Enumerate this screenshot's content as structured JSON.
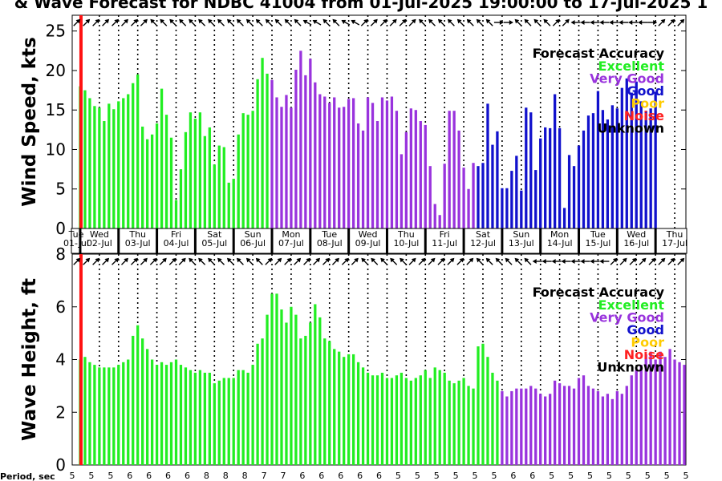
{
  "title": "& Wave Forecast for NDBC 41004 from 01-Jul-2025 19:00:00 to 17-Jul-2025 1",
  "accuracy_legend": {
    "title": "Forecast Accuracy",
    "entries": [
      {
        "label": "Excellent",
        "color": "#22ee22"
      },
      {
        "label": "Very Good",
        "color": "#9933dd"
      },
      {
        "label": "Good",
        "color": "#1111cc"
      },
      {
        "label": "Poor",
        "color": "#ffcc00"
      },
      {
        "label": "Noise",
        "color": "#ff2222"
      },
      {
        "label": "Unknown",
        "color": "#000000"
      }
    ]
  },
  "day_labels": [
    {
      "dow": "Tue",
      "date": "01-Jul"
    },
    {
      "dow": "Wed",
      "date": "02-Jul"
    },
    {
      "dow": "Thu",
      "date": "03-Jul"
    },
    {
      "dow": "Fri",
      "date": "04-Jul"
    },
    {
      "dow": "Sat",
      "date": "05-Jul"
    },
    {
      "dow": "Sun",
      "date": "06-Jul"
    },
    {
      "dow": "Mon",
      "date": "07-Jul"
    },
    {
      "dow": "Tue",
      "date": "08-Jul"
    },
    {
      "dow": "Wed",
      "date": "09-Jul"
    },
    {
      "dow": "Thu",
      "date": "10-Jul"
    },
    {
      "dow": "Fri",
      "date": "11-Jul"
    },
    {
      "dow": "Sat",
      "date": "12-Jul"
    },
    {
      "dow": "Sun",
      "date": "13-Jul"
    },
    {
      "dow": "Mon",
      "date": "14-Jul"
    },
    {
      "dow": "Tue",
      "date": "15-Jul"
    },
    {
      "dow": "Wed",
      "date": "16-Jul"
    },
    {
      "dow": "Thu",
      "date": "17-Jul"
    }
  ],
  "period_label": "Period, sec",
  "periods": [
    "5",
    "5",
    "5",
    "6",
    "6",
    "6",
    "6",
    "8",
    "8",
    "8",
    "7",
    "7",
    "6",
    "6",
    "6",
    "6",
    "6",
    "5",
    "5",
    "5",
    "5",
    "5",
    "5",
    "6",
    "6",
    "5",
    "5",
    "5",
    "5",
    "5",
    "5",
    "5",
    "5"
  ],
  "chart_data": [
    {
      "type": "bar",
      "ylabel": "Wind Speed, kts",
      "ylim": [
        0,
        27
      ],
      "yticks": [
        0,
        5,
        10,
        15,
        20,
        25
      ],
      "grid": "dotted vertical lines at 00:00 and 12:00",
      "noise_marker_hour": 5.5,
      "bars_start_hour": 5,
      "bar_step_hours": 3,
      "values": [
        18,
        17.5,
        16.5,
        15.5,
        15.3,
        13.6,
        15.8,
        15.1,
        16.1,
        16.5,
        17,
        18.4,
        19.5,
        12.9,
        11.3,
        11.9,
        13.3,
        17.7,
        14.4,
        11.5,
        3.6,
        7.5,
        12.2,
        14.7,
        13.9,
        14.7,
        11.7,
        12.8,
        8.1,
        10.5,
        10.3,
        5.8,
        6.3,
        11.9,
        14.6,
        14.4,
        14.9,
        18.9,
        21.6,
        19.6,
        18.8,
        16.6,
        15.4,
        16.9,
        15.3,
        20.1,
        22.5,
        19.4,
        21.5,
        18.5,
        17,
        16.7,
        15.9,
        16.6,
        15.3,
        15.4,
        16.4,
        16.5,
        13.3,
        12.4,
        16.6,
        15.9,
        13.6,
        16.6,
        16.2,
        16.7,
        14.9,
        9.4,
        12.2,
        15.2,
        15.0,
        13.6,
        13.1,
        7.9,
        3.1,
        1.7,
        8.2,
        14.9,
        14.9,
        12.4,
        7.7,
        5.0,
        8.3,
        7.9,
        8.3,
        15.8,
        10.6,
        12.3,
        5.1,
        5.1,
        7.3,
        9.2,
        4.8,
        15.3,
        14.7,
        7.4,
        11.4,
        12.8,
        12.7,
        17.0,
        12.7,
        2.6,
        9.3,
        7.9,
        10.5,
        12.4,
        14.3,
        14.6,
        17.4,
        15.0,
        13.8,
        15.6,
        15.2,
        17.8,
        19.0,
        17.2,
        18.6,
        16.1,
        14.9,
        15.2,
        17.3
      ],
      "accuracy": [
        "Excellent",
        "Excellent",
        "Excellent",
        "Excellent",
        "Excellent",
        "Excellent",
        "Excellent",
        "Excellent",
        "Excellent",
        "Excellent",
        "Excellent",
        "Excellent",
        "Excellent",
        "Excellent",
        "Excellent",
        "Excellent",
        "Excellent",
        "Excellent",
        "Excellent",
        "Excellent",
        "Excellent",
        "Excellent",
        "Excellent",
        "Excellent",
        "Excellent",
        "Excellent",
        "Excellent",
        "Excellent",
        "Excellent",
        "Excellent",
        "Excellent",
        "Excellent",
        "Excellent",
        "Excellent",
        "Excellent",
        "Excellent",
        "Excellent",
        "Excellent",
        "Excellent",
        "Excellent",
        "Very Good",
        "Very Good",
        "Very Good",
        "Very Good",
        "Very Good",
        "Very Good",
        "Very Good",
        "Very Good",
        "Very Good",
        "Very Good",
        "Very Good",
        "Very Good",
        "Very Good",
        "Very Good",
        "Very Good",
        "Very Good",
        "Very Good",
        "Very Good",
        "Very Good",
        "Very Good",
        "Very Good",
        "Very Good",
        "Very Good",
        "Very Good",
        "Very Good",
        "Very Good",
        "Very Good",
        "Very Good",
        "Very Good",
        "Very Good",
        "Very Good",
        "Very Good",
        "Very Good",
        "Very Good",
        "Very Good",
        "Very Good",
        "Very Good",
        "Very Good",
        "Very Good",
        "Very Good",
        "Very Good",
        "Very Good",
        "Very Good",
        "Good",
        "Good",
        "Good",
        "Good",
        "Good",
        "Good",
        "Good",
        "Good",
        "Good",
        "Good",
        "Good",
        "Good",
        "Good",
        "Good",
        "Good",
        "Good",
        "Good",
        "Good",
        "Good",
        "Good",
        "Good",
        "Good",
        "Good",
        "Good",
        "Good",
        "Good",
        "Good",
        "Good",
        "Good",
        "Good",
        "Good",
        "Good",
        "Good",
        "Good",
        "Good",
        "Good",
        "Good",
        "Good"
      ]
    },
    {
      "type": "bar",
      "ylabel": "Wave Height, ft",
      "ylim": [
        0,
        8
      ],
      "yticks": [
        0,
        2,
        4,
        6,
        8
      ],
      "grid": "dotted vertical lines at 00:00 and 12:00",
      "noise_marker_hour": 5.5,
      "bars_start_hour": 5,
      "bar_step_hours": 3,
      "values": [
        4.0,
        4.1,
        3.9,
        3.8,
        3.7,
        3.7,
        3.7,
        3.7,
        3.8,
        3.9,
        4.0,
        4.9,
        5.3,
        4.8,
        4.4,
        4.0,
        3.8,
        3.9,
        3.8,
        3.9,
        4.0,
        3.8,
        3.7,
        3.6,
        3.5,
        3.6,
        3.5,
        3.5,
        3.1,
        3.2,
        3.3,
        3.3,
        3.3,
        3.6,
        3.6,
        3.5,
        3.8,
        4.6,
        4.8,
        5.7,
        6.5,
        6.5,
        5.9,
        5.4,
        6.0,
        5.7,
        4.8,
        4.9,
        5.4,
        6.1,
        5.6,
        4.8,
        4.7,
        4.4,
        4.3,
        4.1,
        4.2,
        4.2,
        3.9,
        3.7,
        3.5,
        3.4,
        3.4,
        3.5,
        3.3,
        3.3,
        3.4,
        3.5,
        3.3,
        3.2,
        3.3,
        3.4,
        3.6,
        3.3,
        3.7,
        3.6,
        3.5,
        3.2,
        3.1,
        3.2,
        3.3,
        3.0,
        2.9,
        4.5,
        4.6,
        4.1,
        3.5,
        3.2,
        2.8,
        2.6,
        2.8,
        2.9,
        2.9,
        2.9,
        3.0,
        2.9,
        2.7,
        2.6,
        2.7,
        3.2,
        3.1,
        3.0,
        3.0,
        2.9,
        3.3,
        3.4,
        3.0,
        2.9,
        2.8,
        2.6,
        2.7,
        2.5,
        2.8,
        2.7,
        3.0,
        3.4,
        3.6,
        3.8,
        4.2,
        4.3,
        4.0,
        4.3,
        4.1,
        4.4,
        4.0,
        3.9,
        3.8,
        3.7,
        3.4,
        3.5
      ],
      "accuracy": [
        "Excellent",
        "Excellent",
        "Excellent",
        "Excellent",
        "Excellent",
        "Excellent",
        "Excellent",
        "Excellent",
        "Excellent",
        "Excellent",
        "Excellent",
        "Excellent",
        "Excellent",
        "Excellent",
        "Excellent",
        "Excellent",
        "Excellent",
        "Excellent",
        "Excellent",
        "Excellent",
        "Excellent",
        "Excellent",
        "Excellent",
        "Excellent",
        "Excellent",
        "Excellent",
        "Excellent",
        "Excellent",
        "Excellent",
        "Excellent",
        "Excellent",
        "Excellent",
        "Excellent",
        "Excellent",
        "Excellent",
        "Excellent",
        "Excellent",
        "Excellent",
        "Excellent",
        "Excellent",
        "Excellent",
        "Excellent",
        "Excellent",
        "Excellent",
        "Excellent",
        "Excellent",
        "Excellent",
        "Excellent",
        "Excellent",
        "Excellent",
        "Excellent",
        "Excellent",
        "Excellent",
        "Excellent",
        "Excellent",
        "Excellent",
        "Excellent",
        "Excellent",
        "Excellent",
        "Excellent",
        "Excellent",
        "Excellent",
        "Excellent",
        "Excellent",
        "Excellent",
        "Excellent",
        "Excellent",
        "Excellent",
        "Excellent",
        "Excellent",
        "Excellent",
        "Excellent",
        "Excellent",
        "Excellent",
        "Excellent",
        "Excellent",
        "Excellent",
        "Excellent",
        "Excellent",
        "Excellent",
        "Excellent",
        "Excellent",
        "Excellent",
        "Excellent",
        "Excellent",
        "Excellent",
        "Excellent",
        "Excellent",
        "Very Good",
        "Very Good",
        "Very Good",
        "Very Good",
        "Very Good",
        "Very Good",
        "Very Good",
        "Very Good",
        "Very Good",
        "Very Good",
        "Very Good",
        "Very Good",
        "Very Good",
        "Very Good",
        "Very Good",
        "Very Good",
        "Very Good",
        "Very Good",
        "Very Good",
        "Very Good",
        "Very Good",
        "Very Good",
        "Very Good",
        "Very Good",
        "Very Good",
        "Very Good",
        "Very Good",
        "Very Good",
        "Very Good",
        "Very Good",
        "Very Good",
        "Very Good",
        "Very Good",
        "Very Good",
        "Very Good",
        "Very Good",
        "Very Good",
        "Very Good",
        "Very Good",
        "Very Good",
        "Very Good",
        "Very Good",
        "Very Good"
      ]
    }
  ],
  "wind_arrows_deg": [
    45,
    45,
    45,
    45,
    45,
    45,
    45,
    45,
    315,
    315,
    315,
    315,
    315,
    315,
    315,
    315,
    315,
    315,
    315,
    315,
    315,
    315,
    315,
    315,
    300,
    300,
    315,
    315,
    300,
    300,
    45,
    45,
    45,
    45,
    45,
    45,
    315,
    315,
    315,
    315,
    315,
    315,
    315,
    315,
    90,
    90,
    315,
    315,
    315,
    315,
    45,
    45,
    270,
    270,
    270,
    270,
    270,
    270,
    270,
    270,
    90,
    45,
    45,
    45
  ],
  "wave_arrows_deg": [
    45,
    45,
    45,
    45,
    45,
    45,
    45,
    45,
    45,
    45,
    45,
    45,
    315,
    315,
    315,
    315,
    315,
    315,
    315,
    315,
    45,
    45,
    45,
    45,
    45,
    45,
    45,
    45,
    45,
    45,
    315,
    315,
    315,
    315,
    315,
    45,
    45,
    45,
    45,
    45,
    45,
    45,
    315,
    315,
    315,
    315,
    315,
    315,
    270,
    270,
    270,
    270,
    270,
    270,
    270,
    270,
    45,
    45,
    45,
    45,
    45,
    45,
    45,
    45
  ]
}
